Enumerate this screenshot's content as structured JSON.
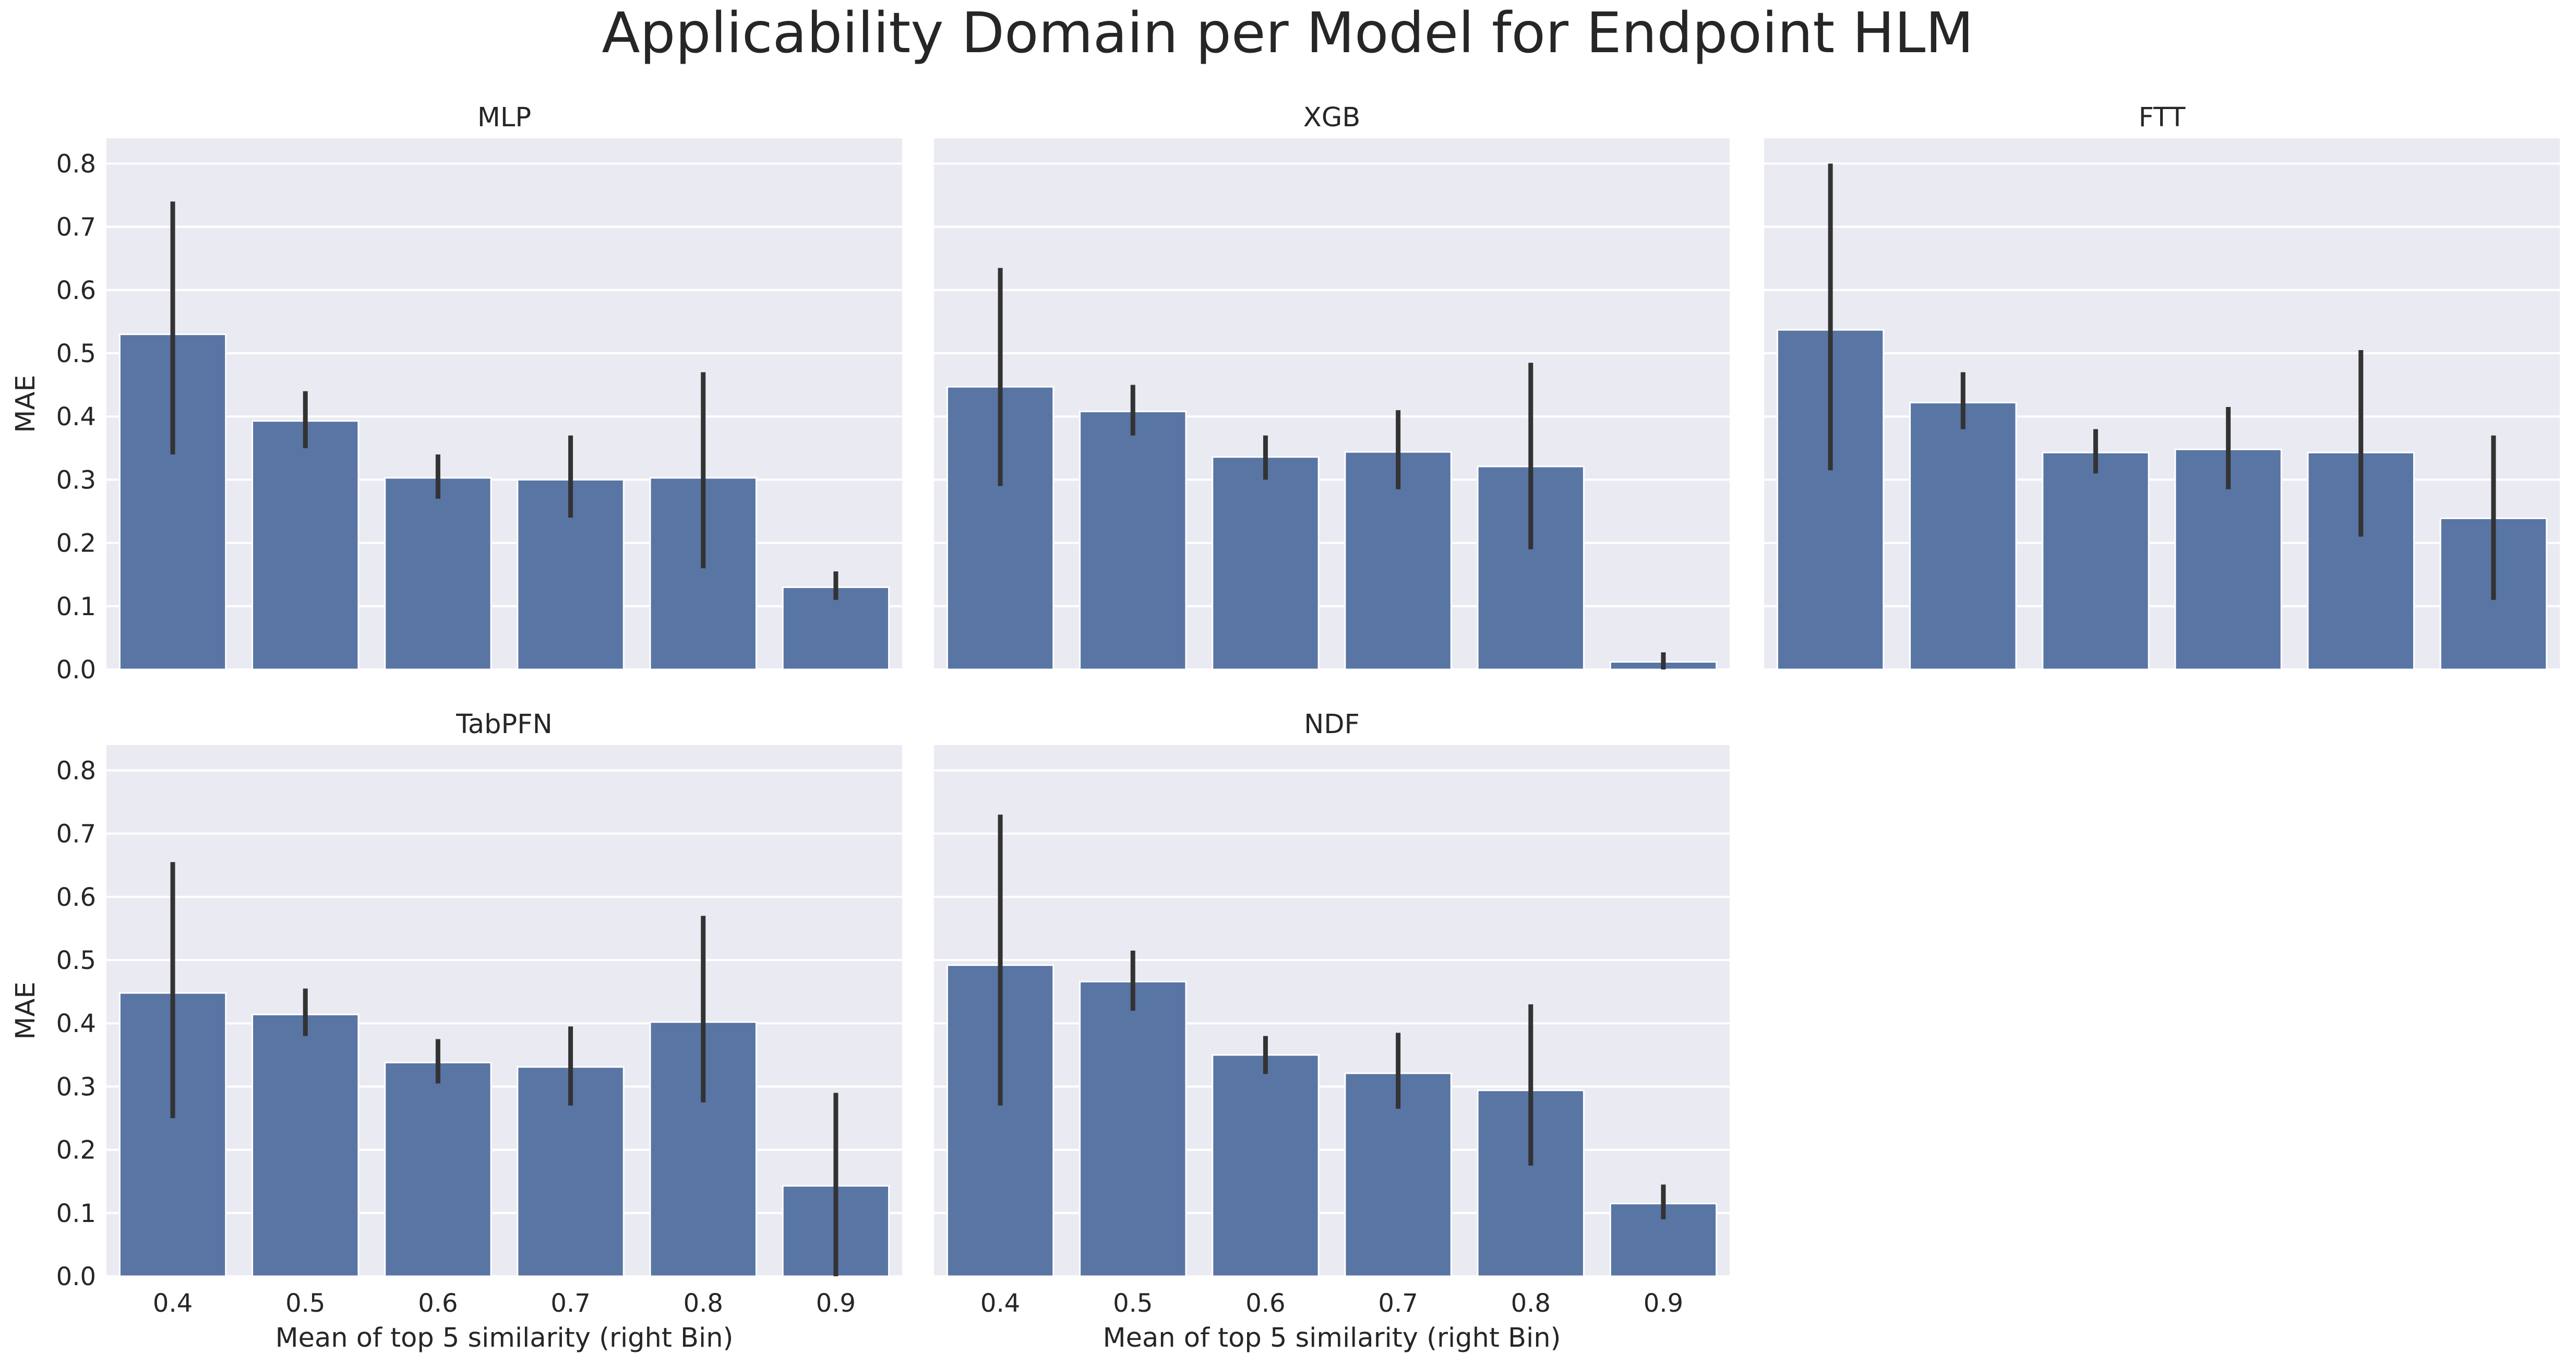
{
  "chart_data": {
    "type": "bar",
    "title": "Applicability Domain per Model for Endpoint HLM",
    "xlabel": "Mean of top 5 similarity (right Bin)",
    "ylabel": "MAE",
    "categories": [
      "0.4",
      "0.5",
      "0.6",
      "0.7",
      "0.8",
      "0.9"
    ],
    "ylim": [
      0,
      0.84
    ],
    "yticks": [
      "0.0",
      "0.1",
      "0.2",
      "0.3",
      "0.4",
      "0.5",
      "0.6",
      "0.7",
      "0.8"
    ],
    "grid": true,
    "bar_color": "#5875a4",
    "error_bar_color": "#333333",
    "background_color": "#eaeaf2",
    "panels": [
      {
        "name": "MLP",
        "values": [
          0.53,
          0.393,
          0.303,
          0.3,
          0.303,
          0.13
        ],
        "error_low": [
          0.34,
          0.35,
          0.27,
          0.24,
          0.16,
          0.11
        ],
        "error_high": [
          0.74,
          0.44,
          0.34,
          0.37,
          0.47,
          0.155
        ]
      },
      {
        "name": "XGB",
        "values": [
          0.447,
          0.408,
          0.336,
          0.344,
          0.321,
          0.012
        ],
        "error_low": [
          0.29,
          0.37,
          0.3,
          0.285,
          0.19,
          0.0
        ],
        "error_high": [
          0.635,
          0.45,
          0.37,
          0.41,
          0.485,
          0.027
        ]
      },
      {
        "name": "FTT",
        "values": [
          0.537,
          0.422,
          0.343,
          0.348,
          0.343,
          0.239
        ],
        "error_low": [
          0.315,
          0.38,
          0.31,
          0.285,
          0.21,
          0.11
        ],
        "error_high": [
          0.8,
          0.47,
          0.38,
          0.415,
          0.505,
          0.37
        ]
      },
      {
        "name": "TabPFN",
        "values": [
          0.448,
          0.414,
          0.338,
          0.331,
          0.402,
          0.143
        ],
        "error_low": [
          0.25,
          0.38,
          0.305,
          0.27,
          0.275,
          0.0
        ],
        "error_high": [
          0.655,
          0.455,
          0.375,
          0.395,
          0.57,
          0.29
        ]
      },
      {
        "name": "NDF",
        "values": [
          0.492,
          0.466,
          0.35,
          0.321,
          0.294,
          0.115
        ],
        "error_low": [
          0.27,
          0.42,
          0.32,
          0.265,
          0.175,
          0.09
        ],
        "error_high": [
          0.73,
          0.515,
          0.38,
          0.385,
          0.43,
          0.145
        ]
      }
    ]
  }
}
